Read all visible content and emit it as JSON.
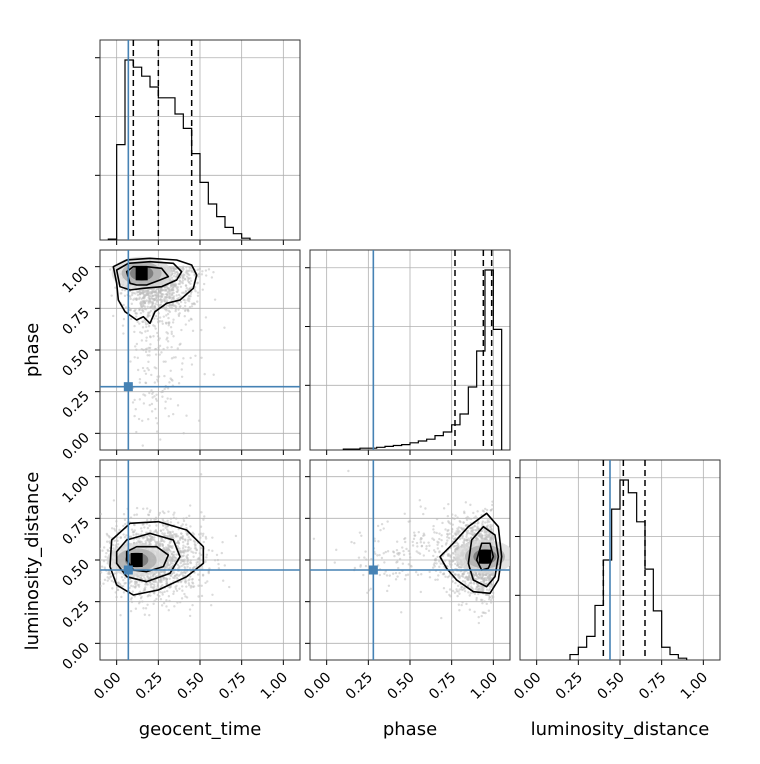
{
  "chart_data": {
    "type": "corner",
    "parameters": [
      "geocent_time",
      "phase",
      "luminosity_distance"
    ],
    "tick_values": [
      0.0,
      0.25,
      0.5,
      0.75,
      1.0
    ],
    "tick_labels": [
      "0.00",
      "0.25",
      "0.50",
      "0.75",
      "1.00"
    ],
    "axis_range": [
      -0.1,
      1.1
    ],
    "grid": true,
    "colors": {
      "truth": "#4682b4",
      "hist": "#000000",
      "points": "#bdbdbd"
    },
    "truths": {
      "geocent_time": 0.07,
      "phase": 0.28,
      "luminosity_distance": 0.44
    },
    "quantiles": {
      "geocent_time": [
        0.1,
        0.25,
        0.45
      ],
      "phase": [
        0.77,
        0.94,
        0.99
      ],
      "luminosity_distance": [
        0.4,
        0.52,
        0.65
      ]
    },
    "histograms": {
      "geocent_time": {
        "bin_edges": [
          -0.05,
          0.0,
          0.05,
          0.1,
          0.15,
          0.2,
          0.25,
          0.3,
          0.35,
          0.4,
          0.45,
          0.5,
          0.55,
          0.6,
          0.65,
          0.7,
          0.75,
          0.8
        ],
        "counts": [
          0.005,
          0.53,
          1.0,
          0.96,
          0.91,
          0.85,
          0.79,
          0.79,
          0.7,
          0.62,
          0.48,
          0.32,
          0.2,
          0.13,
          0.07,
          0.035,
          0.01
        ]
      },
      "phase": {
        "bin_edges": [
          0.1,
          0.15,
          0.2,
          0.25,
          0.3,
          0.35,
          0.4,
          0.45,
          0.5,
          0.55,
          0.6,
          0.65,
          0.7,
          0.75,
          0.8,
          0.85,
          0.9,
          0.95,
          1.0,
          1.05
        ],
        "counts": [
          0.005,
          0.005,
          0.01,
          0.01,
          0.015,
          0.02,
          0.025,
          0.03,
          0.04,
          0.05,
          0.06,
          0.08,
          0.1,
          0.14,
          0.2,
          0.35,
          0.55,
          1.0,
          0.67
        ]
      },
      "luminosity_distance": {
        "bin_edges": [
          0.2,
          0.25,
          0.3,
          0.35,
          0.4,
          0.45,
          0.5,
          0.55,
          0.6,
          0.65,
          0.7,
          0.75,
          0.8,
          0.85,
          0.9
        ],
        "counts": [
          0.03,
          0.07,
          0.13,
          0.3,
          0.55,
          0.83,
          0.99,
          0.92,
          0.76,
          0.5,
          0.27,
          0.07,
          0.03,
          0.01
        ]
      }
    },
    "scatter_density": {
      "geocent_time_vs_phase": {
        "peak": [
          0.15,
          0.96
        ],
        "contours": [
          [
            [
              0.08,
              0.9
            ],
            [
              0.12,
              0.89
            ],
            [
              0.18,
              0.89
            ],
            [
              0.26,
              0.92
            ],
            [
              0.31,
              0.94
            ],
            [
              0.27,
              0.99
            ],
            [
              0.18,
              1.0
            ],
            [
              0.1,
              1.0
            ],
            [
              0.06,
              0.97
            ]
          ],
          [
            [
              0.02,
              0.88
            ],
            [
              0.08,
              0.86
            ],
            [
              0.16,
              0.87
            ],
            [
              0.27,
              0.88
            ],
            [
              0.36,
              0.92
            ],
            [
              0.39,
              0.97
            ],
            [
              0.34,
              1.02
            ],
            [
              0.2,
              1.03
            ],
            [
              0.07,
              1.02
            ],
            [
              0.0,
              0.98
            ]
          ],
          [
            [
              0.0,
              0.9
            ],
            [
              0.01,
              0.8
            ],
            [
              0.05,
              0.73
            ],
            [
              0.12,
              0.68
            ],
            [
              0.16,
              0.7
            ],
            [
              0.2,
              0.66
            ],
            [
              0.23,
              0.73
            ],
            [
              0.3,
              0.78
            ],
            [
              0.38,
              0.8
            ],
            [
              0.46,
              0.87
            ],
            [
              0.48,
              0.95
            ],
            [
              0.45,
              1.01
            ],
            [
              0.36,
              1.04
            ],
            [
              0.2,
              1.05
            ],
            [
              0.06,
              1.04
            ],
            [
              -0.02,
              1.0
            ]
          ]
        ]
      },
      "geocent_time_vs_luminosity_distance": {
        "peak": [
          0.12,
          0.5
        ],
        "contours": [
          [
            [
              0.06,
              0.5
            ],
            [
              0.1,
              0.44
            ],
            [
              0.18,
              0.43
            ],
            [
              0.28,
              0.46
            ],
            [
              0.31,
              0.53
            ],
            [
              0.24,
              0.58
            ],
            [
              0.12,
              0.58
            ],
            [
              0.06,
              0.55
            ]
          ],
          [
            [
              0.0,
              0.48
            ],
            [
              0.06,
              0.4
            ],
            [
              0.18,
              0.37
            ],
            [
              0.32,
              0.42
            ],
            [
              0.38,
              0.52
            ],
            [
              0.34,
              0.62
            ],
            [
              0.2,
              0.66
            ],
            [
              0.06,
              0.62
            ],
            [
              0.0,
              0.55
            ]
          ],
          [
            [
              -0.04,
              0.46
            ],
            [
              0.0,
              0.35
            ],
            [
              0.1,
              0.29
            ],
            [
              0.25,
              0.32
            ],
            [
              0.42,
              0.4
            ],
            [
              0.52,
              0.48
            ],
            [
              0.52,
              0.58
            ],
            [
              0.42,
              0.68
            ],
            [
              0.25,
              0.73
            ],
            [
              0.08,
              0.72
            ],
            [
              -0.03,
              0.62
            ]
          ]
        ]
      },
      "phase_vs_luminosity_distance": {
        "peak": [
          0.95,
          0.52
        ],
        "contours": [
          [
            [
              0.9,
              0.5
            ],
            [
              0.93,
              0.44
            ],
            [
              0.97,
              0.45
            ],
            [
              1.0,
              0.52
            ],
            [
              0.98,
              0.6
            ],
            [
              0.93,
              0.6
            ]
          ],
          [
            [
              0.85,
              0.48
            ],
            [
              0.88,
              0.38
            ],
            [
              0.96,
              0.34
            ],
            [
              1.01,
              0.4
            ],
            [
              1.03,
              0.52
            ],
            [
              1.01,
              0.65
            ],
            [
              0.94,
              0.7
            ],
            [
              0.87,
              0.62
            ]
          ],
          [
            [
              0.68,
              0.52
            ],
            [
              0.72,
              0.45
            ],
            [
              0.78,
              0.38
            ],
            [
              0.88,
              0.31
            ],
            [
              0.98,
              0.3
            ],
            [
              1.03,
              0.38
            ],
            [
              1.05,
              0.52
            ],
            [
              1.03,
              0.7
            ],
            [
              0.96,
              0.78
            ],
            [
              0.85,
              0.7
            ],
            [
              0.76,
              0.6
            ]
          ]
        ]
      }
    }
  }
}
